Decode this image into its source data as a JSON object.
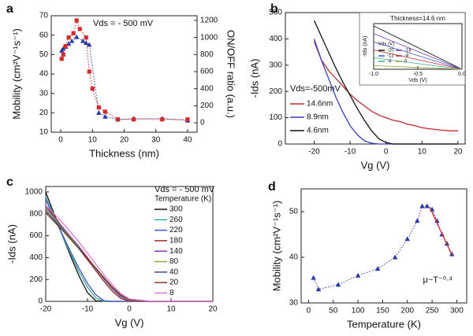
{
  "chart_data": [
    {
      "type": "scatter",
      "label": "a",
      "xlabel": "Thickness (nm)",
      "ylabel": "Mobility (cm²V⁻¹s⁻¹)",
      "y2label": "ON/OFF ratio (a.u.)",
      "annotations": [
        "Vds = - 500 mV"
      ],
      "xlim": [
        -3,
        43
      ],
      "xticks": [
        0,
        10,
        20,
        30,
        40
      ],
      "ylim": [
        10,
        70
      ],
      "yticks": [
        10,
        20,
        30,
        40,
        50,
        60,
        70
      ],
      "y2lim": [
        -110,
        1255
      ],
      "y2ticks": [
        0,
        200,
        400,
        600,
        800,
        1000,
        1200
      ],
      "ycolor": "#2b3a9e",
      "y2color": "#d42a2a",
      "series": [
        {
          "marker": "triangle",
          "color": "#2b3a9e",
          "linestyle": "dotted",
          "x": [
            0.3,
            0.8,
            1.5,
            2.5,
            3.5,
            5,
            7,
            8,
            9,
            12,
            14,
            18,
            23,
            32,
            40
          ],
          "values": [
            52,
            53,
            54,
            55.5,
            57,
            59,
            57,
            56,
            55,
            20,
            18,
            16.5,
            17,
            17,
            16
          ]
        },
        {
          "marker": "square",
          "color": "#d42a2a",
          "linestyle": "dotted",
          "axis": "y2",
          "x": [
            0.3,
            0.8,
            1.5,
            2.5,
            4,
            5,
            6,
            8,
            9,
            10,
            12,
            14,
            18,
            23,
            32,
            40
          ],
          "values": [
            750,
            800,
            900,
            1000,
            1050,
            1200,
            1100,
            1000,
            600,
            400,
            180,
            130,
            40,
            40,
            40,
            40
          ]
        }
      ]
    },
    {
      "type": "line",
      "label": "b",
      "xlabel": "Vg (V)",
      "ylabel": "-Ids (nA)",
      "annotations": [
        "Vds=-500mV"
      ],
      "legend": true,
      "xlim": [
        -28,
        22
      ],
      "xticks": [
        -20,
        -10,
        0,
        10,
        20
      ],
      "ylim": [
        0,
        500
      ],
      "yticks": [
        0,
        100,
        200,
        300,
        400,
        500
      ],
      "x": [
        -20,
        -18,
        -16,
        -14,
        -12,
        -10,
        -8,
        -6,
        -4,
        -2,
        0,
        2,
        4,
        6,
        8,
        10,
        12,
        14,
        16,
        18,
        20
      ],
      "series": [
        {
          "name": "14.6nm",
          "color": "#c0272d",
          "values": [
            390,
            320,
            280,
            250,
            220,
            190,
            165,
            145,
            125,
            110,
            100,
            90,
            85,
            75,
            70,
            62,
            58,
            55,
            52,
            50,
            50
          ]
        },
        {
          "name": "8.9nm",
          "color": "#3b3fb8",
          "values": [
            400,
            320,
            250,
            180,
            120,
            70,
            35,
            12,
            3,
            0,
            0,
            0,
            0,
            0,
            0,
            0,
            0,
            0,
            0,
            0,
            0
          ]
        },
        {
          "name": "4.6nm",
          "color": "#111111",
          "values": [
            470,
            410,
            350,
            290,
            235,
            185,
            135,
            90,
            50,
            20,
            5,
            0,
            0,
            0,
            0,
            0,
            0,
            0,
            0,
            0,
            0
          ]
        }
      ]
    },
    {
      "type": "line",
      "label": "c",
      "xlabel": "Vg (V)",
      "ylabel": "-Ids (nA)",
      "annotations": [
        "Vds = - 500 mV"
      ],
      "legend": true,
      "legend_title": "Temperature (K)",
      "xlim": [
        -20,
        20
      ],
      "xticks": [
        -20,
        -10,
        0,
        10,
        20
      ],
      "ylim": [
        0,
        1050
      ],
      "yticks": [
        0,
        200,
        400,
        600,
        800,
        1000
      ],
      "x": [
        -20,
        -18,
        -16,
        -14,
        -12,
        -10,
        -8,
        -6,
        -4,
        -2,
        0,
        5,
        10,
        15,
        20
      ],
      "series": [
        {
          "name": "300",
          "color": "#111111",
          "values": [
            1000,
            800,
            600,
            410,
            230,
            80,
            5,
            0,
            0,
            0,
            0,
            0,
            0,
            0,
            0
          ]
        },
        {
          "name": "260",
          "color": "#3aa59a",
          "values": [
            960,
            780,
            600,
            430,
            270,
            130,
            30,
            0,
            0,
            0,
            0,
            0,
            0,
            0,
            0
          ]
        },
        {
          "name": "220",
          "color": "#3b55c4",
          "values": [
            930,
            770,
            610,
            450,
            300,
            165,
            60,
            5,
            0,
            0,
            0,
            0,
            0,
            0,
            0
          ]
        },
        {
          "name": "180",
          "color": "#9c2a2a",
          "values": [
            880,
            780,
            680,
            580,
            480,
            380,
            280,
            180,
            90,
            25,
            3,
            0,
            0,
            0,
            0
          ]
        },
        {
          "name": "140",
          "color": "#7a3fa8",
          "values": [
            860,
            770,
            680,
            590,
            500,
            400,
            300,
            200,
            110,
            40,
            8,
            0,
            0,
            0,
            0
          ]
        },
        {
          "name": "80",
          "color": "#8aa63a",
          "values": [
            850,
            760,
            670,
            580,
            490,
            395,
            300,
            205,
            120,
            50,
            12,
            0,
            0,
            0,
            0
          ]
        },
        {
          "name": "40",
          "color": "#3e4e8f",
          "values": [
            830,
            745,
            660,
            570,
            485,
            395,
            300,
            210,
            125,
            55,
            15,
            0,
            0,
            0,
            0
          ]
        },
        {
          "name": "20",
          "color": "#7a3a2a",
          "values": [
            810,
            730,
            650,
            565,
            480,
            395,
            305,
            215,
            130,
            60,
            18,
            0,
            0,
            0,
            0
          ]
        },
        {
          "name": "8",
          "color": "#e07ad0",
          "values": [
            880,
            800,
            720,
            630,
            540,
            440,
            340,
            240,
            150,
            70,
            22,
            2,
            0,
            0,
            0
          ]
        }
      ]
    },
    {
      "type": "scatter",
      "label": "d",
      "xlabel": "Temperature (K)",
      "ylabel": "Mobility (cm²V⁻¹s⁻¹)",
      "annotations": [
        "μ~T⁻⁰·³"
      ],
      "xlim": [
        -15,
        320
      ],
      "xticks": [
        0,
        50,
        100,
        150,
        200,
        250,
        300
      ],
      "ylim": [
        30,
        55
      ],
      "yticks": [
        30,
        40,
        50
      ],
      "series": [
        {
          "marker": "triangle",
          "color": "#2b3a9e",
          "linestyle": "dotted",
          "x": [
            10,
            20,
            60,
            100,
            140,
            175,
            200,
            220,
            230,
            240,
            250,
            260,
            270,
            280,
            290
          ],
          "values": [
            35.5,
            33,
            34,
            36,
            37.5,
            40,
            44,
            48,
            51.2,
            51.2,
            50.5,
            48,
            45,
            43,
            40.7
          ]
        },
        {
          "color": "#d42a2a",
          "linestyle": "solid",
          "x": [
            245,
            290
          ],
          "values": [
            51,
            40.5
          ]
        }
      ]
    },
    {
      "type": "line",
      "title": "Thickness=14.6 nm",
      "xlabel": "Vds (V)",
      "ylabel": "-Ids (nA)",
      "legend": true,
      "legend_title": "Vds (V)",
      "xlim": [
        -1,
        0
      ],
      "xticks": [
        {
          "value": -1,
          "label": "-1.0"
        },
        -0.5,
        {
          "value": 0,
          "label": "0.0"
        }
      ],
      "ylim": [
        0,
        100
      ],
      "x": [
        -1,
        0
      ],
      "series": [
        {
          "name": "-20",
          "color": "#111111",
          "values": [
            95,
            0
          ]
        },
        {
          "name": "-16",
          "color": "#7a3fa8",
          "values": [
            78,
            0
          ]
        },
        {
          "name": "-12",
          "color": "#3b55c4",
          "values": [
            60,
            0
          ]
        },
        {
          "name": "-8",
          "color": "#c0272d",
          "values": [
            42,
            0
          ]
        },
        {
          "name": "-4",
          "color": "#3aa59a",
          "values": [
            25,
            0
          ]
        },
        {
          "name": "0",
          "color": "#8aa63a",
          "values": [
            8,
            0
          ]
        }
      ]
    }
  ]
}
